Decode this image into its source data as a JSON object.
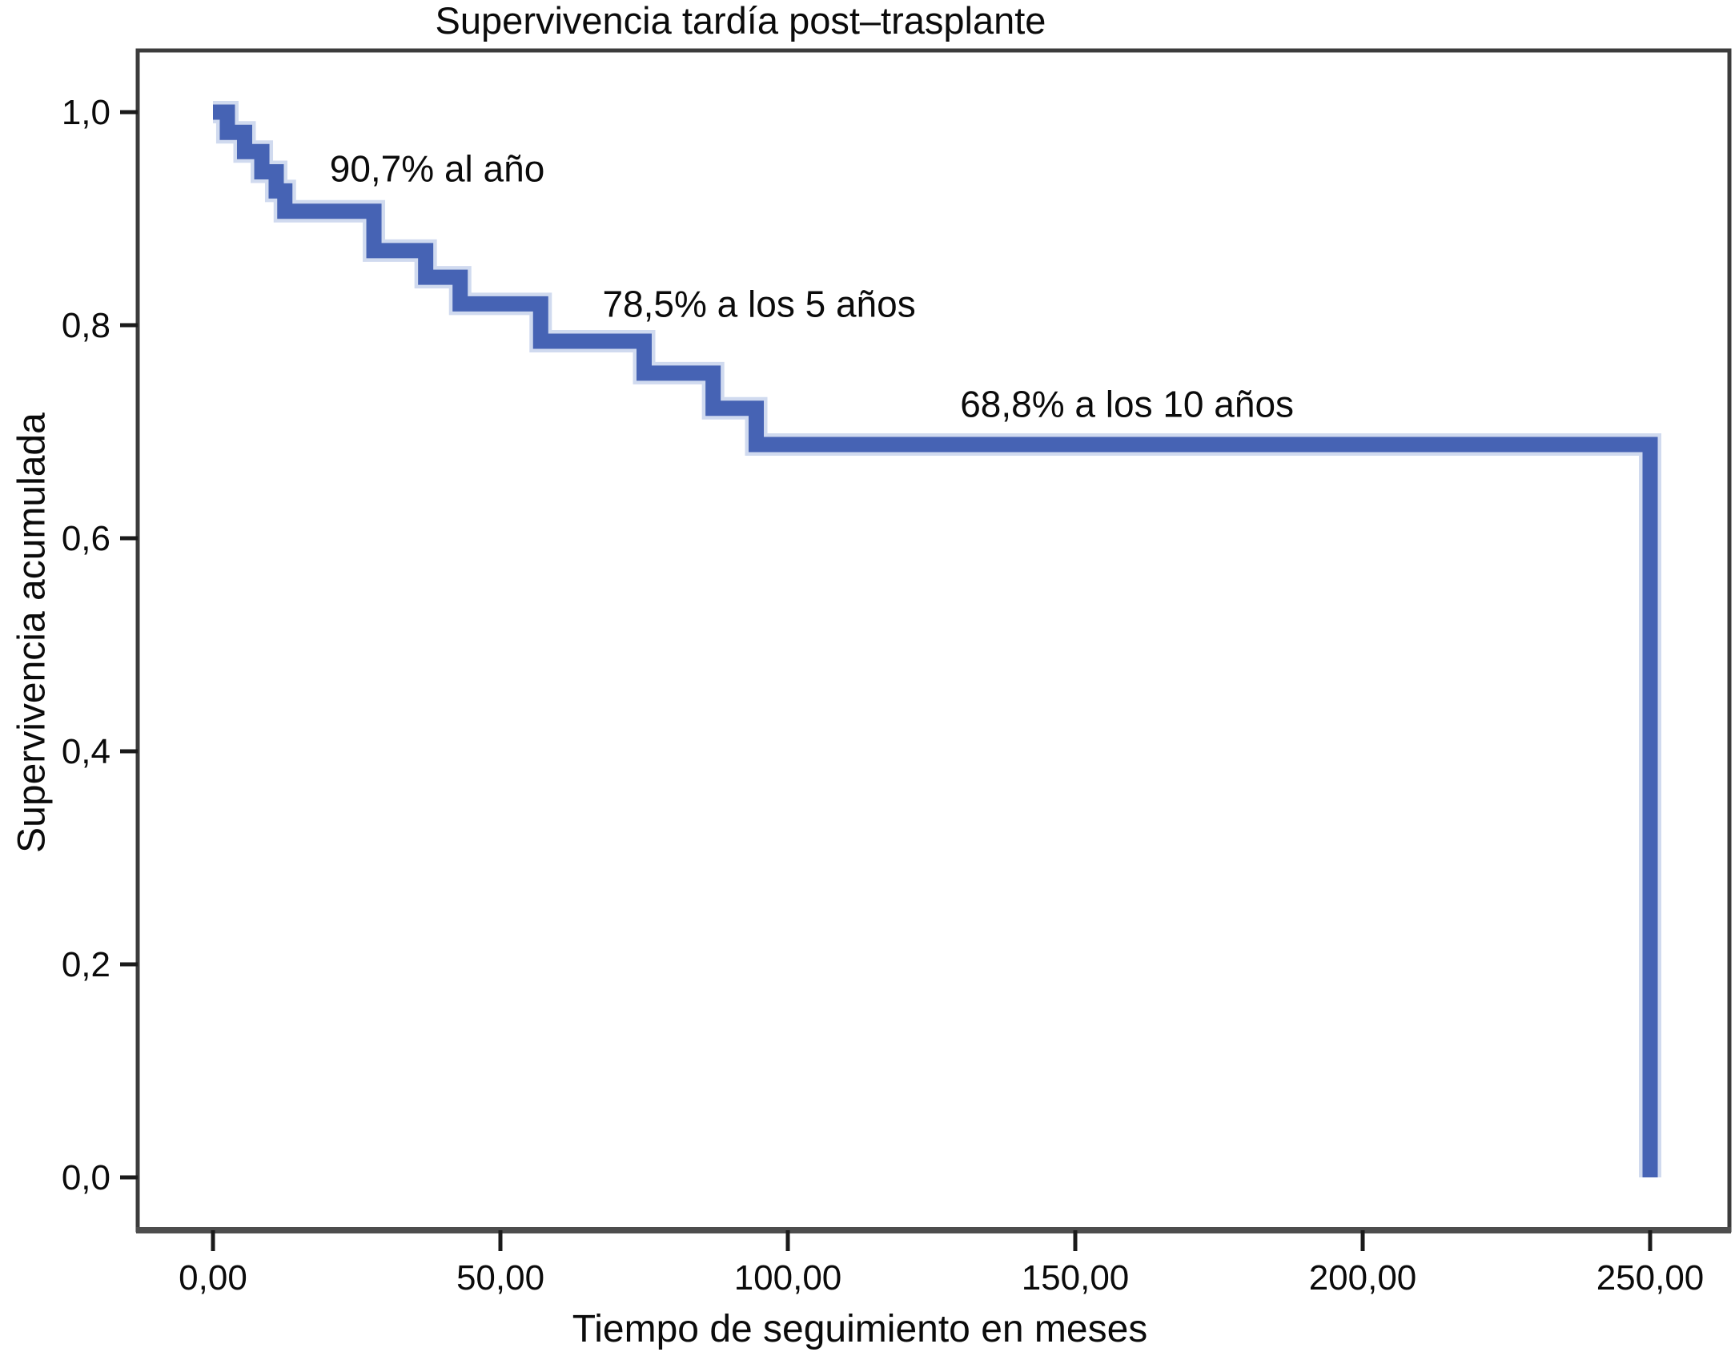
{
  "title": "Supervivencia tardía post–trasplante",
  "axes": {
    "x": {
      "label": "Tiempo de seguimiento en meses",
      "ticks": [
        {
          "label": "0,00",
          "value": 0
        },
        {
          "label": "50,00",
          "value": 50
        },
        {
          "label": "100,00",
          "value": 100
        },
        {
          "label": "150,00",
          "value": 150
        },
        {
          "label": "200,00",
          "value": 200
        },
        {
          "label": "250,00",
          "value": 250
        }
      ],
      "range": [
        0,
        250
      ]
    },
    "y": {
      "label": "Supervivencia acumulada",
      "ticks": [
        {
          "label": "1,0",
          "value": 1.0
        },
        {
          "label": "0,8",
          "value": 0.8
        },
        {
          "label": "0,6",
          "value": 0.6
        },
        {
          "label": "0,4",
          "value": 0.4
        },
        {
          "label": "0,2",
          "value": 0.2
        },
        {
          "label": "0,0",
          "value": 0.0
        }
      ],
      "range": [
        0,
        1
      ]
    }
  },
  "chart_data": {
    "type": "line",
    "subtype": "kaplan-meier-step",
    "title": "Supervivencia tardía post–trasplante",
    "xlabel": "Tiempo de seguimiento en meses",
    "ylabel": "Supervivencia acumulada",
    "xlim": [
      0,
      250
    ],
    "ylim": [
      0.0,
      1.0
    ],
    "grid": false,
    "legend": "none",
    "series": [
      {
        "name": "Supervivencia acumulada",
        "start": {
          "t": 0,
          "s": 1.0
        },
        "steps": [
          {
            "t": 2.5,
            "s": 0.981
          },
          {
            "t": 5.5,
            "s": 0.963
          },
          {
            "t": 8.5,
            "s": 0.944
          },
          {
            "t": 11,
            "s": 0.926
          },
          {
            "t": 12.5,
            "s": 0.907
          },
          {
            "t": 28,
            "s": 0.87
          },
          {
            "t": 37,
            "s": 0.845
          },
          {
            "t": 43,
            "s": 0.82
          },
          {
            "t": 57,
            "s": 0.785
          },
          {
            "t": 75,
            "s": 0.755
          },
          {
            "t": 87,
            "s": 0.722
          },
          {
            "t": 94.5,
            "s": 0.688
          },
          {
            "t": 250,
            "s": 0.0
          }
        ]
      }
    ],
    "annotations": [
      {
        "text": "90,7% al año",
        "t": 39,
        "s": 0.947
      },
      {
        "text": "78,5% a los 5 años",
        "t": 95,
        "s": 0.82
      },
      {
        "text": "68,8% a los 10 años",
        "t": 159,
        "s": 0.726
      }
    ],
    "key_values": {
      "survival_1_year": "90,7%",
      "survival_5_years": "78,5%",
      "survival_10_years": "68,8%"
    },
    "colors": {
      "curve": "#4663b4",
      "curve_halo": "#a9bbe2",
      "frame": "#3c3c3c",
      "tick": "#1a1a1a",
      "text": "#0b0b0b"
    }
  }
}
